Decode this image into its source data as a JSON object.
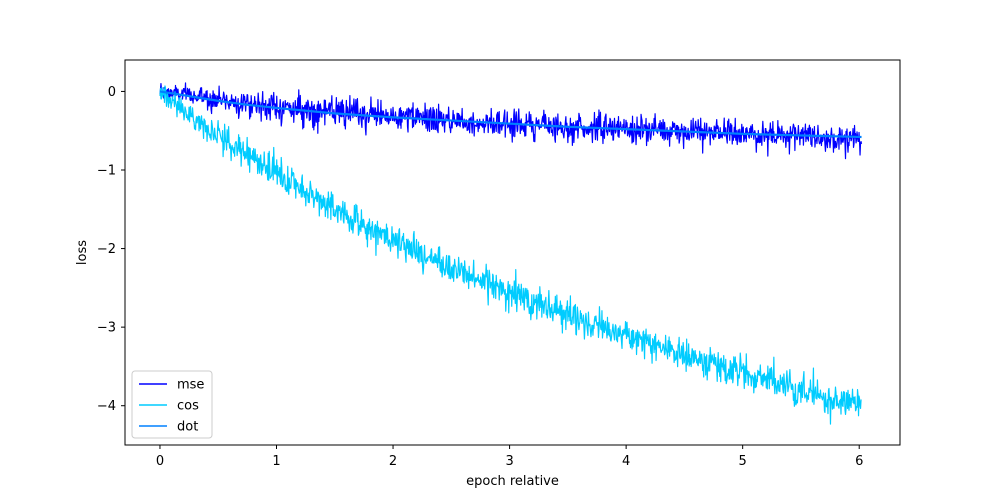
{
  "chart_data": {
    "type": "line",
    "title": "",
    "xlabel": "epoch relative",
    "ylabel": "loss",
    "xlim": [
      -0.3,
      6.35
    ],
    "ylim": [
      -4.5,
      0.4
    ],
    "x_ticks": [
      0,
      1,
      2,
      3,
      4,
      5,
      6
    ],
    "y_ticks": [
      0,
      -1,
      -2,
      -3,
      -4
    ],
    "y_tick_labels": [
      "0",
      "−1",
      "−2",
      "−3",
      "−4"
    ],
    "grid": false,
    "legend_position": "lower-left",
    "series": [
      {
        "name": "mse",
        "color": "#0000ff",
        "x": [
          0,
          0.25,
          0.5,
          0.75,
          1,
          1.5,
          2,
          2.5,
          3,
          3.5,
          4,
          4.5,
          5,
          5.5,
          6.02
        ],
        "values": [
          0.0,
          -0.05,
          -0.1,
          -0.15,
          -0.2,
          -0.27,
          -0.32,
          -0.37,
          -0.41,
          -0.45,
          -0.48,
          -0.51,
          -0.54,
          -0.57,
          -0.6
        ],
        "noise": 0.09
      },
      {
        "name": "cos",
        "color": "#00ccff",
        "x": [
          0,
          0.25,
          0.5,
          0.75,
          1,
          1.5,
          2,
          2.5,
          3,
          3.5,
          4,
          4.5,
          5,
          5.5,
          6.02
        ],
        "values": [
          0.0,
          -0.3,
          -0.55,
          -0.8,
          -1.05,
          -1.5,
          -1.9,
          -2.25,
          -2.55,
          -2.85,
          -3.1,
          -3.35,
          -3.6,
          -3.8,
          -4.0
        ],
        "noise": 0.1
      },
      {
        "name": "dot",
        "color": "#0080ff",
        "x": [
          0,
          0.25,
          0.5,
          0.75,
          1,
          1.5,
          2,
          2.5,
          3,
          3.5,
          4,
          4.5,
          5,
          5.5,
          6.02
        ],
        "values": [
          0.0,
          -0.06,
          -0.12,
          -0.17,
          -0.21,
          -0.28,
          -0.33,
          -0.37,
          -0.41,
          -0.45,
          -0.48,
          -0.51,
          -0.54,
          -0.56,
          -0.58
        ],
        "noise": 0.0
      }
    ]
  }
}
